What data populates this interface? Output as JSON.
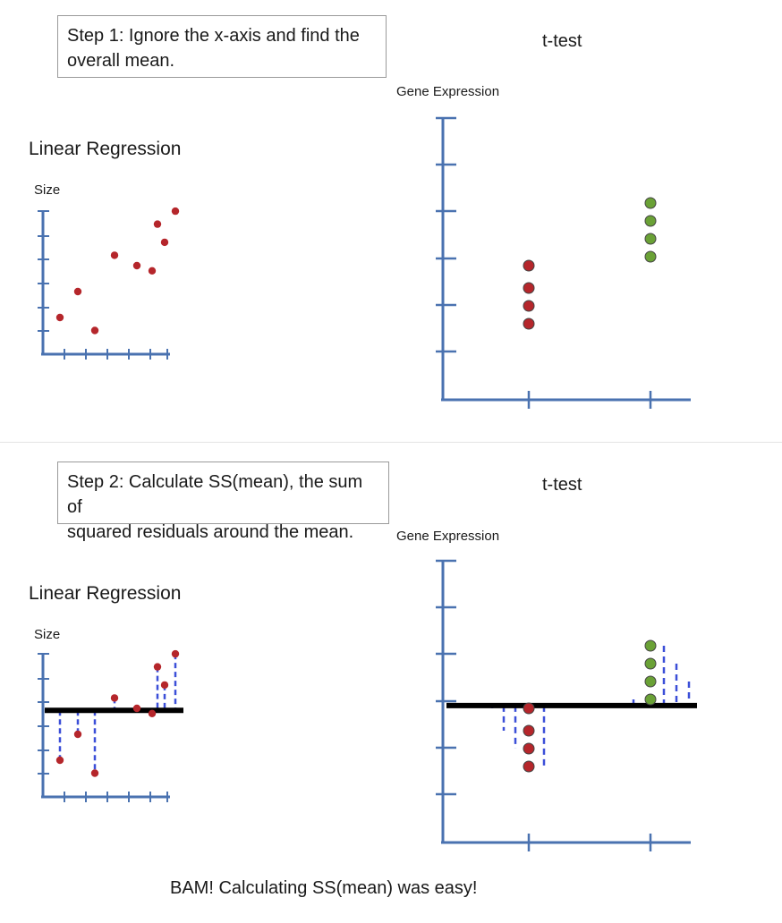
{
  "colors": {
    "axis": "#4a72b0",
    "red_point": "#b5262b",
    "green_point": "#6aa136",
    "residual": "#3b4fd8",
    "mean_line": "#000000"
  },
  "step1": {
    "text_line1": "Step 1: Ignore the x-axis and find the",
    "text_line2": "overall mean."
  },
  "step2": {
    "text_line1": "Step 2: Calculate SS(mean), the sum of",
    "text_line2": "squared residuals around the mean."
  },
  "labels": {
    "linear_regression": "Linear Regression",
    "size_axis": "Size",
    "ttest": "t-test",
    "gene_expression_axis": "Gene Expression"
  },
  "footer": "BAM! Calculating SS(mean) was easy!",
  "chart_data": [
    {
      "type": "scatter",
      "title": "Linear Regression",
      "ylabel": "Size",
      "points_y": [
        1.0,
        2.0,
        0.5,
        3.4,
        3.0,
        2.8,
        4.6,
        3.9,
        5.1
      ]
    },
    {
      "type": "scatter",
      "title": "t-test",
      "ylabel": "Gene Expression",
      "groups": [
        {
          "values": [
            5.8,
            5.3,
            4.9,
            4.5
          ]
        },
        {
          "values": [
            7.2,
            6.8,
            6.4,
            6.0
          ]
        }
      ]
    },
    {
      "type": "scatter",
      "title": "Linear Regression",
      "ylabel": "Size",
      "mean_line": true,
      "points_y": [
        1.0,
        2.0,
        0.5,
        3.4,
        3.0,
        2.8,
        4.6,
        3.9,
        5.1
      ]
    },
    {
      "type": "scatter",
      "title": "t-test",
      "ylabel": "Gene Expression",
      "mean_line": true,
      "groups": [
        {
          "values": [
            5.8,
            5.3,
            4.9,
            4.5
          ]
        },
        {
          "values": [
            7.2,
            6.8,
            6.4,
            6.0
          ]
        }
      ]
    }
  ]
}
